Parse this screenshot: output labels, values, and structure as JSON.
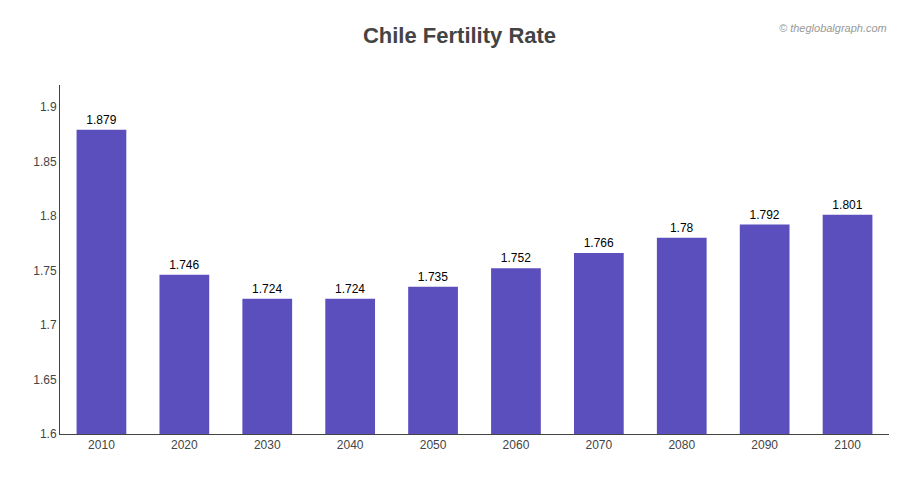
{
  "chart_data": {
    "type": "bar",
    "title": "Chile Fertility Rate",
    "categories": [
      "2010",
      "2020",
      "2030",
      "2040",
      "2050",
      "2060",
      "2070",
      "2080",
      "2090",
      "2100"
    ],
    "values": [
      1.879,
      1.746,
      1.724,
      1.724,
      1.735,
      1.752,
      1.766,
      1.78,
      1.792,
      1.801
    ],
    "color": "#5B4FBE",
    "ylim": [
      1.6,
      1.92
    ],
    "yticks": [
      1.6,
      1.65,
      1.7,
      1.75,
      1.8,
      1.85,
      1.9
    ],
    "data_labels": true,
    "grid": false,
    "annotations": [
      "© theglobalgraph.com"
    ]
  }
}
